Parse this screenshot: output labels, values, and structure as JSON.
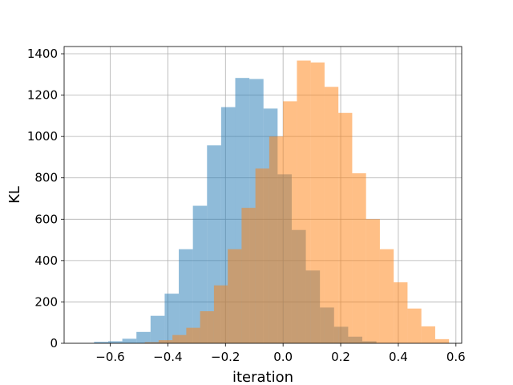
{
  "chart_data": {
    "type": "histogram",
    "title": "",
    "xlabel": "iteration",
    "ylabel": "KL",
    "xlim": [
      -0.76,
      0.62
    ],
    "ylim": [
      0,
      1435
    ],
    "xticks": [
      -0.6,
      -0.4,
      -0.2,
      0.0,
      0.2,
      0.4,
      0.6
    ],
    "xtick_labels": [
      "−0.6",
      "−0.4",
      "−0.2",
      "0.0",
      "0.2",
      "0.4",
      "0.6"
    ],
    "yticks": [
      0,
      200,
      400,
      600,
      800,
      1000,
      1200,
      1400
    ],
    "ytick_labels": [
      "0",
      "200",
      "400",
      "600",
      "800",
      "1000",
      "1200",
      "1400"
    ],
    "grid": true,
    "legend": "none",
    "series": [
      {
        "color": "#1f77b4",
        "opacity": 0.5,
        "bins": [
          [
            -0.705,
            -0.656,
            1
          ],
          [
            -0.656,
            -0.607,
            7
          ],
          [
            -0.607,
            -0.558,
            10
          ],
          [
            -0.558,
            -0.509,
            22
          ],
          [
            -0.509,
            -0.46,
            55
          ],
          [
            -0.46,
            -0.411,
            133
          ],
          [
            -0.411,
            -0.362,
            240
          ],
          [
            -0.362,
            -0.313,
            455
          ],
          [
            -0.313,
            -0.264,
            665
          ],
          [
            -0.264,
            -0.215,
            957
          ],
          [
            -0.215,
            -0.166,
            1142
          ],
          [
            -0.166,
            -0.117,
            1283
          ],
          [
            -0.117,
            -0.068,
            1278
          ],
          [
            -0.068,
            -0.019,
            1135
          ],
          [
            -0.019,
            0.03,
            817
          ],
          [
            0.03,
            0.079,
            548
          ],
          [
            0.079,
            0.128,
            352
          ],
          [
            0.128,
            0.177,
            173
          ],
          [
            0.177,
            0.226,
            80
          ],
          [
            0.226,
            0.275,
            32
          ],
          [
            0.275,
            0.324,
            10
          ]
        ]
      },
      {
        "color": "#ff7f0e",
        "opacity": 0.5,
        "bins": [
          [
            -0.48,
            -0.432,
            5
          ],
          [
            -0.432,
            -0.384,
            15
          ],
          [
            -0.384,
            -0.336,
            40
          ],
          [
            -0.336,
            -0.288,
            75
          ],
          [
            -0.288,
            -0.24,
            155
          ],
          [
            -0.24,
            -0.192,
            280
          ],
          [
            -0.192,
            -0.144,
            455
          ],
          [
            -0.144,
            -0.096,
            655
          ],
          [
            -0.096,
            -0.048,
            845
          ],
          [
            -0.048,
            0.0,
            1000
          ],
          [
            0.0,
            0.048,
            1170
          ],
          [
            0.048,
            0.096,
            1367
          ],
          [
            0.096,
            0.144,
            1358
          ],
          [
            0.144,
            0.192,
            1240
          ],
          [
            0.192,
            0.24,
            1114
          ],
          [
            0.24,
            0.288,
            822
          ],
          [
            0.288,
            0.336,
            600
          ],
          [
            0.336,
            0.384,
            455
          ],
          [
            0.384,
            0.432,
            295
          ],
          [
            0.432,
            0.48,
            168
          ],
          [
            0.48,
            0.528,
            82
          ],
          [
            0.528,
            0.576,
            20
          ]
        ]
      }
    ]
  }
}
